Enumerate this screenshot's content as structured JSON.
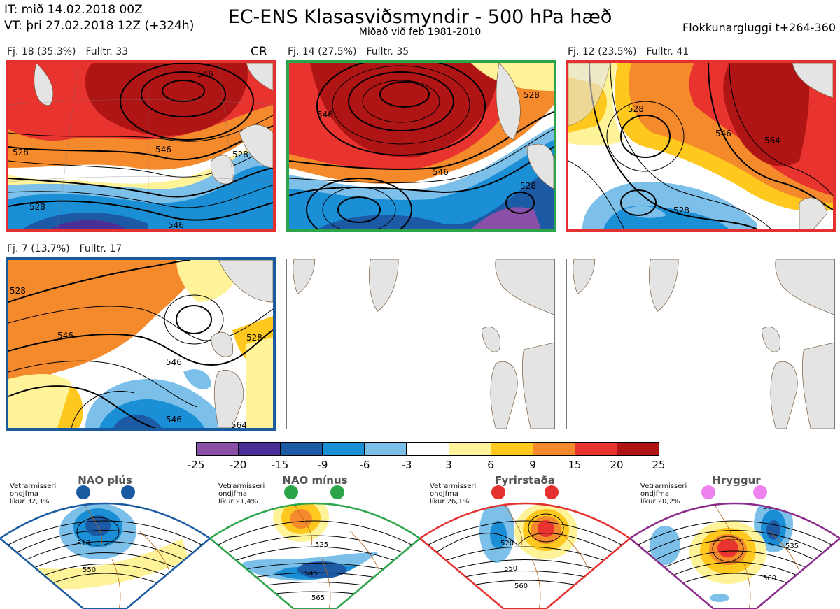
{
  "header": {
    "it_line": "IT: mið 14.02.2018 00Z",
    "vt_line": "VT: þri 27.02.2018 12Z  (+324h)",
    "title": "EC-ENS Klasasviðsmyndir - 500 hPa hæð",
    "subtitle": "Miðað við feb 1981-2010",
    "window": "Flokkunargluggi t+264-360"
  },
  "panels": [
    {
      "fj": "Fj. 18 (35.3%)",
      "fulltr": "Fulltr. 33",
      "extra": "CR",
      "border": "#e53030"
    },
    {
      "fj": "Fj. 14 (27.5%)",
      "fulltr": "Fulltr. 35",
      "border": "#2ca44a"
    },
    {
      "fj": "Fj. 12 (23.5%)",
      "fulltr": "Fulltr. 41",
      "border": "#e53030"
    },
    {
      "fj": "Fj. 7 (13.7%)",
      "fulltr": "Fulltr. 17",
      "border": "#1a5aa0"
    }
  ],
  "contour_labels": {
    "p1": [
      "528",
      "546",
      "528",
      "546",
      "528",
      "546"
    ],
    "p2": [
      "546",
      "528",
      "528",
      "546"
    ],
    "p3": [
      "528",
      "546",
      "564",
      "528"
    ],
    "p4": [
      "528",
      "546",
      "546",
      "528",
      "546",
      "564"
    ]
  },
  "colorbar": {
    "colors": [
      "#8a4fa6",
      "#4b2f99",
      "#1c5aa6",
      "#1b8fd6",
      "#7cc0ea",
      "#ffffff",
      "#fff39a",
      "#ffc81e",
      "#f48a2c",
      "#e8332e",
      "#b01515"
    ],
    "ticks": [
      "-25",
      "-20",
      "-15",
      "-9",
      "-6",
      "-3",
      "3",
      "6",
      "9",
      "15",
      "20",
      "25"
    ]
  },
  "regimes": [
    {
      "name": "NAO plús",
      "note": [
        "Vetrarmisseri",
        "ondjfma",
        "líkur 32,3%"
      ],
      "color": "#1a5aa0",
      "dot": "#1a5aa0",
      "labels": [
        "510",
        "550"
      ]
    },
    {
      "name": "NAO mínus",
      "note": [
        "Vetrarmisseri",
        "ondjfma",
        "líkur 21,4%"
      ],
      "color": "#2ca44a",
      "dot": "#2ca44a",
      "labels": [
        "525",
        "545",
        "565"
      ]
    },
    {
      "name": "Fyrirstaða",
      "note": [
        "Vetrarmisseri",
        "ondjfma",
        "líkur 26,1%"
      ],
      "color": "#e53030",
      "dot": "#e53030",
      "labels": [
        "520",
        "550",
        "560"
      ]
    },
    {
      "name": "Hryggur",
      "note": [
        "Vetrarmisseri",
        "ondjfma",
        "líkur 20,2%"
      ],
      "color": "#8a2a8a",
      "dot": "#ee82ee",
      "labels": [
        "505",
        "535",
        "560"
      ]
    }
  ]
}
